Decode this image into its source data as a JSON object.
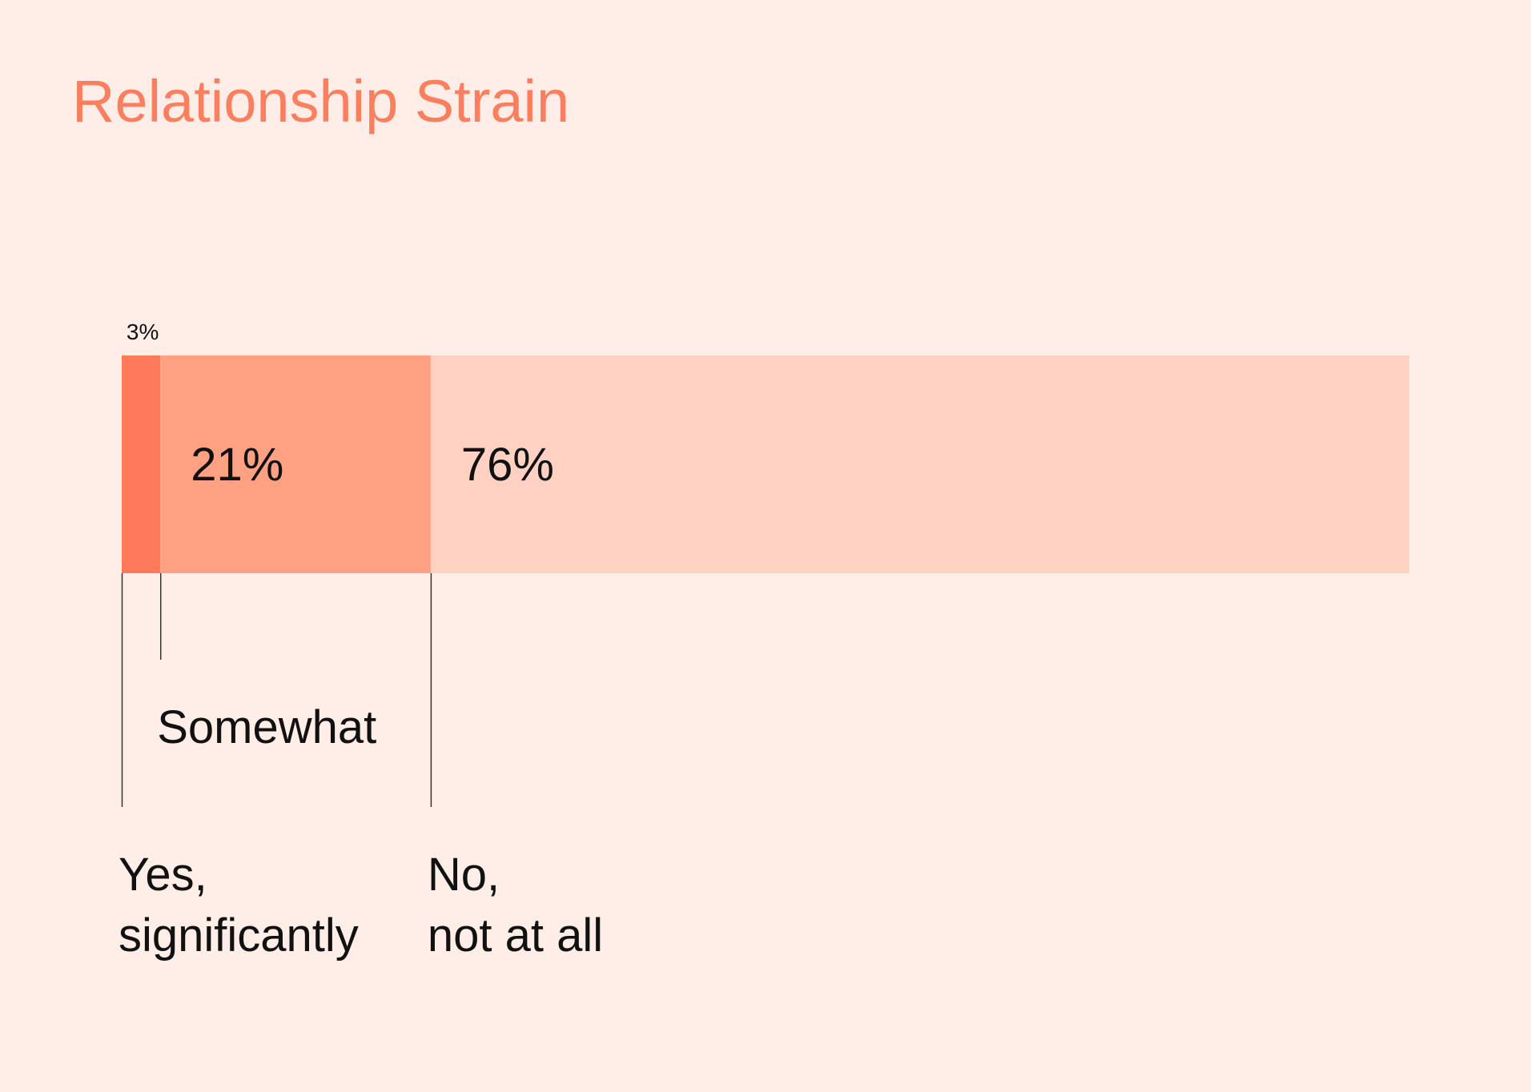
{
  "chart_data": {
    "type": "bar",
    "orientation": "horizontal",
    "stacked": true,
    "title": "Relationship Strain",
    "xlim": [
      0,
      100
    ],
    "grid": false,
    "legend": "none",
    "series": [
      {
        "name": "Yes, significantly",
        "value": 3,
        "label": "3%",
        "category_label": [
          "Yes,",
          "significantly"
        ],
        "color": "#FF7A5A"
      },
      {
        "name": "Somewhat",
        "value": 21,
        "label": "21%",
        "category_label": [
          "Somewhat"
        ],
        "color": "#FFA182"
      },
      {
        "name": "No, not at all",
        "value": 76,
        "label": "76%",
        "category_label": [
          "No,",
          "not at all"
        ],
        "color": "#FFD1C3"
      }
    ]
  },
  "colors": {
    "background": "#FFEEE8",
    "title": "#FA7F5E",
    "text": "#111111",
    "leader_line": "#333333"
  }
}
